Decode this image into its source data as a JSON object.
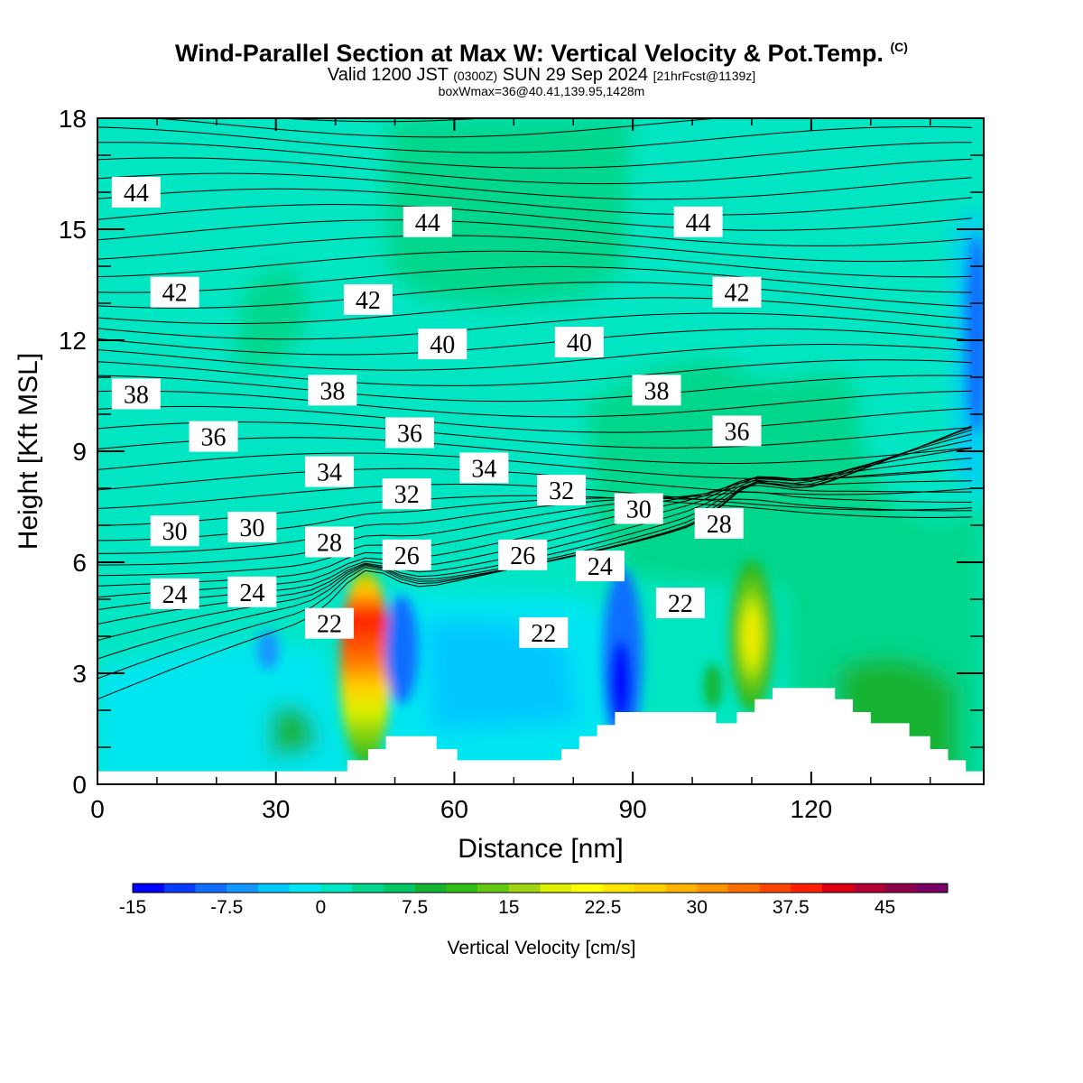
{
  "header": {
    "title": "Wind-Parallel Section at Max W: Vertical Velocity & Pot.Temp.",
    "title_tag": "(C)",
    "valid_prefix": "Valid 1200 JST",
    "valid_z": "(0300Z)",
    "valid_date": "SUN 29 Sep 2024",
    "fcst": "[21hrFcst@1139z]",
    "box_info": "boxWmax=36@40.41,139.95,1428m"
  },
  "chart_data": {
    "type": "heatmap",
    "xlabel": "Distance [nm]",
    "ylabel": "Height [Kft MSL]",
    "xlim": [
      0,
      149
    ],
    "ylim": [
      0,
      18
    ],
    "x_ticks": [
      0,
      30,
      60,
      90,
      120
    ],
    "y_ticks": [
      0,
      3,
      6,
      9,
      12,
      15,
      18
    ],
    "grid": false,
    "colorbar": {
      "label": "Vertical Velocity [cm/s]",
      "tick_labels": [
        "-15",
        "-7.5",
        "0",
        "7.5",
        "15",
        "22.5",
        "30",
        "37.5",
        "45"
      ],
      "tick_values": [
        -15,
        -7.5,
        0,
        7.5,
        15,
        22.5,
        30,
        37.5,
        45
      ],
      "range": [
        -15,
        50
      ],
      "step": 2.5,
      "colors": [
        "#0000ff",
        "#0a3cff",
        "#0f6eff",
        "#1496ff",
        "#00c8ff",
        "#00e6f0",
        "#00e6c3",
        "#00d78c",
        "#00c864",
        "#14b432",
        "#32be14",
        "#64c814",
        "#a0d214",
        "#dcf000",
        "#ffff00",
        "#ffe600",
        "#ffd200",
        "#ffb400",
        "#ff9600",
        "#ff6e00",
        "#ff4600",
        "#ff1e00",
        "#dc0014",
        "#b40032",
        "#91004b",
        "#780064"
      ]
    },
    "theta_contours": {
      "units": "C",
      "labels": [
        {
          "value": "44",
          "x": 6.5,
          "y": 16.0
        },
        {
          "value": "44",
          "x": 55.5,
          "y": 15.2
        },
        {
          "value": "44",
          "x": 101,
          "y": 15.2
        },
        {
          "value": "42",
          "x": 13,
          "y": 13.3
        },
        {
          "value": "42",
          "x": 45.5,
          "y": 13.1
        },
        {
          "value": "42",
          "x": 107.5,
          "y": 13.3
        },
        {
          "value": "40",
          "x": 58,
          "y": 11.9
        },
        {
          "value": "40",
          "x": 81,
          "y": 11.95
        },
        {
          "value": "38",
          "x": 6.5,
          "y": 10.55
        },
        {
          "value": "38",
          "x": 39.5,
          "y": 10.65
        },
        {
          "value": "38",
          "x": 94,
          "y": 10.65
        },
        {
          "value": "36",
          "x": 19.5,
          "y": 9.4
        },
        {
          "value": "36",
          "x": 52.5,
          "y": 9.5
        },
        {
          "value": "36",
          "x": 107.5,
          "y": 9.55
        },
        {
          "value": "34",
          "x": 39,
          "y": 8.45
        },
        {
          "value": "34",
          "x": 65,
          "y": 8.55
        },
        {
          "value": "32",
          "x": 52,
          "y": 7.85
        },
        {
          "value": "32",
          "x": 78,
          "y": 7.95
        },
        {
          "value": "30",
          "x": 13,
          "y": 6.85
        },
        {
          "value": "30",
          "x": 26,
          "y": 6.95
        },
        {
          "value": "30",
          "x": 91,
          "y": 7.45
        },
        {
          "value": "28",
          "x": 39,
          "y": 6.55
        },
        {
          "value": "28",
          "x": 104.5,
          "y": 7.05
        },
        {
          "value": "26",
          "x": 52,
          "y": 6.2
        },
        {
          "value": "26",
          "x": 71.5,
          "y": 6.2
        },
        {
          "value": "24",
          "x": 13,
          "y": 5.15
        },
        {
          "value": "24",
          "x": 26,
          "y": 5.2
        },
        {
          "value": "24",
          "x": 84.5,
          "y": 5.9
        },
        {
          "value": "22",
          "x": 39,
          "y": 4.35
        },
        {
          "value": "22",
          "x": 75,
          "y": 4.1
        },
        {
          "value": "22",
          "x": 98,
          "y": 4.9
        }
      ]
    },
    "terrain_profile": [
      [
        0,
        0.35
      ],
      [
        42,
        0.35
      ],
      [
        42,
        0.65
      ],
      [
        45.5,
        0.65
      ],
      [
        45.5,
        0.95
      ],
      [
        48.5,
        0.95
      ],
      [
        48.5,
        1.3
      ],
      [
        52,
        1.3
      ],
      [
        52,
        1.3
      ],
      [
        57,
        1.3
      ],
      [
        57,
        0.95
      ],
      [
        60.5,
        0.95
      ],
      [
        60.5,
        0.65
      ],
      [
        78,
        0.65
      ],
      [
        78,
        0.95
      ],
      [
        81,
        0.95
      ],
      [
        81,
        1.3
      ],
      [
        84,
        1.3
      ],
      [
        84,
        1.6
      ],
      [
        87,
        1.6
      ],
      [
        87,
        1.95
      ],
      [
        104,
        1.95
      ],
      [
        104,
        1.65
      ],
      [
        107.5,
        1.65
      ],
      [
        107.5,
        1.95
      ],
      [
        110.5,
        1.95
      ],
      [
        110.5,
        2.3
      ],
      [
        113.5,
        2.3
      ],
      [
        113.5,
        2.6
      ],
      [
        124,
        2.6
      ],
      [
        124,
        2.3
      ],
      [
        127,
        2.3
      ],
      [
        127,
        1.95
      ],
      [
        130,
        1.95
      ],
      [
        130,
        1.65
      ],
      [
        136.5,
        1.65
      ],
      [
        136.5,
        1.3
      ],
      [
        140,
        1.3
      ],
      [
        140,
        0.95
      ],
      [
        143,
        0.95
      ],
      [
        143,
        0.65
      ],
      [
        146,
        0.65
      ],
      [
        146,
        0.35
      ],
      [
        149,
        0.35
      ]
    ]
  }
}
